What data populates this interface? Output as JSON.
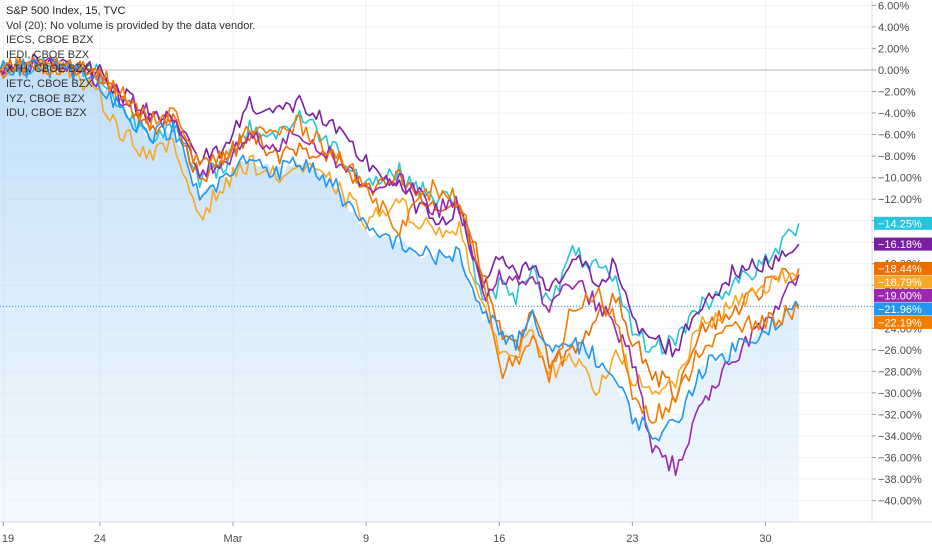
{
  "legend": {
    "title": "S&P 500 Index, 15, TVC",
    "volume": "Vol (20): No volume is provided by the data vendor.",
    "lines": [
      "IECS, CBOE BZX",
      "IEDI, CBOE BZX",
      "XTH, CBOE BZX",
      "IETC, CBOE BZX",
      "IYZ, CBOE BZX",
      "IDU, CBOE BZX"
    ]
  },
  "chart_data": {
    "type": "line",
    "title": "S&P 500 Index, 15, TVC",
    "xlabel": "",
    "ylabel": "",
    "ylim": [
      -42,
      6.5
    ],
    "grid": true,
    "y_ticks": [
      6,
      4,
      2,
      0,
      -2,
      -4,
      -6,
      -8,
      -10,
      -12,
      -14,
      -16,
      -18,
      -20,
      -22,
      -24,
      -26,
      -28,
      -30,
      -32,
      -34,
      -36,
      -38,
      -40
    ],
    "y_tick_labels": [
      "6.00%",
      "4.00%",
      "2.00%",
      "0.00%",
      "−2.00%",
      "−4.00%",
      "−6.00%",
      "−8.00%",
      "−10.00%",
      "−12.00%",
      "−14.00%",
      "−16.00%",
      "−18.00%",
      "−20.00%",
      "−22.00%",
      "−24.00%",
      "−26.00%",
      "−28.00%",
      "−30.00%",
      "−32.00%",
      "−34.00%",
      "−36.00%",
      "−38.00%",
      "−40.00%"
    ],
    "x_domain": [
      0,
      26.2
    ],
    "x_ticks": [
      {
        "x": 0.1,
        "label": "19"
      },
      {
        "x": 3,
        "label": "24"
      },
      {
        "x": 7,
        "label": "Mar"
      },
      {
        "x": 11,
        "label": "9"
      },
      {
        "x": 15,
        "label": "16"
      },
      {
        "x": 19,
        "label": "23"
      },
      {
        "x": 23,
        "label": "30"
      }
    ],
    "series": [
      {
        "color": "#26c6da",
        "label": "−14.25%",
        "x": [
          0,
          1,
          2,
          3,
          3.6,
          4.5,
          5.2,
          6,
          6.8,
          7.5,
          8.3,
          9,
          10,
          11,
          12,
          13,
          13.8,
          14.5,
          15,
          15.5,
          16,
          16.5,
          17.2,
          18,
          18.5,
          19,
          19.6,
          20.3,
          21,
          22,
          23,
          24
        ],
        "y": [
          0,
          0.5,
          0.5,
          -0.2,
          -3.5,
          -6,
          -5,
          -10.5,
          -8.5,
          -5.5,
          -6,
          -4.2,
          -7,
          -10.5,
          -9.5,
          -12,
          -12,
          -22,
          -20,
          -21,
          -18,
          -22,
          -17,
          -18.5,
          -20,
          -24,
          -26,
          -25,
          -22,
          -20,
          -18,
          -14.25
        ]
      },
      {
        "color": "#7b1fa2",
        "label": "−16.18%",
        "x": [
          0,
          1,
          2,
          3,
          3.6,
          4.5,
          5,
          6,
          6.8,
          7.5,
          8.3,
          9,
          10,
          11,
          12,
          13,
          13.8,
          14.5,
          15,
          15.5,
          16,
          16.5,
          17.2,
          18,
          18.5,
          19,
          19.6,
          20.3,
          21,
          22,
          23,
          24
        ],
        "y": [
          0,
          1,
          0.5,
          0,
          -2,
          -4.5,
          -3.5,
          -8.5,
          -7,
          -3,
          -4,
          -3,
          -5.5,
          -8.5,
          -11,
          -14,
          -13,
          -20,
          -17,
          -19.5,
          -18,
          -21,
          -17.5,
          -19.5,
          -18,
          -23.5,
          -25,
          -26,
          -22,
          -19,
          -18,
          -16.18
        ]
      },
      {
        "color": "#ef6c00",
        "label": "−18.44%",
        "x": [
          0,
          1,
          2,
          3,
          3.6,
          4.5,
          5.2,
          6,
          6.8,
          7.5,
          8.3,
          9,
          10,
          11,
          12,
          13,
          13.8,
          14.5,
          15,
          15.5,
          16,
          16.5,
          17.2,
          18,
          18.5,
          19,
          19.6,
          20.3,
          21,
          22,
          23,
          24
        ],
        "y": [
          0,
          0.5,
          0.3,
          -0.5,
          -2.5,
          -5.5,
          -4.5,
          -10,
          -8,
          -6,
          -8,
          -7.5,
          -8,
          -11.5,
          -10,
          -13,
          -12.5,
          -18.5,
          -24,
          -26,
          -22,
          -27.5,
          -26,
          -23,
          -21,
          -25,
          -28,
          -30,
          -24,
          -22.5,
          -20,
          -18.44
        ]
      },
      {
        "color": "#f9a825",
        "label": "−18.79%",
        "x": [
          0,
          1,
          2,
          3,
          3.6,
          4.5,
          5.2,
          6,
          6.8,
          7.5,
          8.3,
          9,
          10,
          11,
          12,
          13,
          13.8,
          14.5,
          15,
          15.5,
          16,
          16.5,
          17.2,
          18,
          18.5,
          19,
          19.6,
          20.3,
          21,
          22,
          23,
          24
        ],
        "y": [
          0,
          0.8,
          0.2,
          -2.5,
          -5.5,
          -8,
          -7,
          -13.5,
          -10.5,
          -8.5,
          -10,
          -9,
          -10.5,
          -14,
          -12.5,
          -15,
          -14.5,
          -22.5,
          -25.5,
          -27,
          -23.5,
          -28,
          -27,
          -30,
          -25.5,
          -28.5,
          -30.5,
          -29,
          -24,
          -22,
          -20,
          -18.79
        ]
      },
      {
        "color": "#9c27b0",
        "label": "−19.00%",
        "x": [
          0,
          1,
          2,
          3,
          3.6,
          4.5,
          5.2,
          6,
          6.8,
          7.5,
          8.3,
          9,
          10,
          11,
          12,
          13,
          13.8,
          14.5,
          15,
          15.5,
          16,
          16.5,
          17.2,
          18,
          18.5,
          19,
          19.6,
          20.3,
          21,
          22,
          23,
          24
        ],
        "y": [
          0,
          0.4,
          0.6,
          -0.8,
          -2.5,
          -4,
          -5,
          -9.5,
          -8.5,
          -6,
          -7,
          -6,
          -8,
          -11,
          -10,
          -13,
          -12.5,
          -21,
          -19,
          -20,
          -19,
          -22.5,
          -19.5,
          -22,
          -24,
          -27,
          -35,
          -37,
          -32,
          -27,
          -23,
          -19
        ]
      },
      {
        "color": "#2196f3",
        "label": "−21.96%",
        "x": [
          0,
          1,
          2,
          3,
          3.6,
          4.5,
          5.2,
          6,
          6.8,
          7.5,
          8.3,
          9,
          10,
          11,
          12,
          13,
          13.8,
          14.5,
          15,
          15.5,
          16,
          16.5,
          17.2,
          18,
          18.5,
          19,
          19.6,
          20.3,
          21,
          22,
          23,
          24
        ],
        "y": [
          0,
          0.2,
          0.1,
          -1,
          -3.5,
          -6,
          -5.5,
          -12,
          -10,
          -8,
          -9.5,
          -8.5,
          -10.5,
          -15,
          -16,
          -17.5,
          -17,
          -23,
          -24,
          -25.5,
          -23,
          -26.5,
          -25,
          -27,
          -29,
          -32,
          -34,
          -33,
          -28,
          -26,
          -24,
          -21.96
        ]
      },
      {
        "color": "#f57c00",
        "label": "−22.19%",
        "x": [
          0,
          1,
          2,
          3,
          3.6,
          4.5,
          5.2,
          6,
          6.8,
          7.5,
          8.3,
          9,
          10,
          11,
          12,
          13,
          13.8,
          14.5,
          15,
          15.5,
          16,
          16.5,
          17.2,
          18,
          18.5,
          19,
          19.6,
          20.3,
          21,
          22,
          23,
          24
        ],
        "y": [
          0,
          0.3,
          0.5,
          -0.5,
          -2,
          -5,
          -4,
          -9,
          -8,
          -5.5,
          -6,
          -5,
          -7.5,
          -11,
          -14.5,
          -11,
          -12,
          -20,
          -28,
          -27,
          -25,
          -29,
          -22,
          -21,
          -23,
          -30,
          -32,
          -31,
          -26,
          -24,
          -23.5,
          -22.19
        ]
      }
    ],
    "index_series": {
      "color": "#90caf9",
      "label": "−21.96%",
      "x": [
        0,
        1,
        2,
        3,
        3.6,
        4.5,
        5.2,
        6,
        6.8,
        7.5,
        8.3,
        9,
        10,
        11,
        12,
        13,
        13.8,
        14.5,
        15,
        15.5,
        16,
        16.5,
        17.2,
        18,
        18.5,
        19,
        19.6,
        20.3,
        21,
        22,
        23,
        24
      ],
      "y": [
        0,
        0.2,
        0.1,
        -1,
        -3.5,
        -6,
        -5.5,
        -12,
        -10,
        -8,
        -9.5,
        -8.5,
        -10.5,
        -15,
        -16,
        -17.5,
        -17,
        -23,
        -24,
        -25.5,
        -23,
        -26.5,
        -25,
        -27,
        -29,
        -32,
        -34,
        -33,
        -28,
        -26,
        -24,
        -21.96
      ]
    }
  }
}
